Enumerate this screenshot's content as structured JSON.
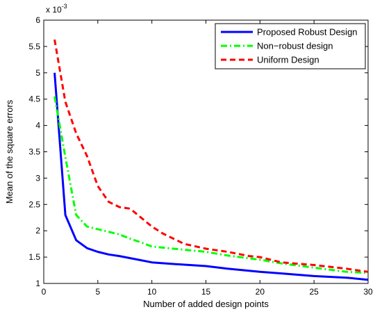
{
  "chart_data": {
    "type": "line",
    "xlabel": "Number of added design points",
    "ylabel": "Mean of the square errors",
    "y_multiplier_label": {
      "base": "x 10",
      "exponent": "-3"
    },
    "xlim": [
      0,
      30
    ],
    "ylim": [
      1,
      6
    ],
    "x_ticks": [
      0,
      5,
      10,
      15,
      20,
      25,
      30
    ],
    "x_tick_labels": [
      "0",
      "5",
      "10",
      "15",
      "20",
      "25",
      "30"
    ],
    "y_ticks": [
      1,
      1.5,
      2,
      2.5,
      3,
      3.5,
      4,
      4.5,
      5,
      5.5,
      6
    ],
    "y_tick_labels": [
      "1",
      "1.5",
      "2",
      "2.5",
      "3",
      "3.5",
      "4",
      "4.5",
      "5",
      "5.5",
      "6"
    ],
    "grid": false,
    "legend_position": "top-right",
    "series": [
      {
        "name": "Proposed Robust Design",
        "color": "#0000ff",
        "style": "solid",
        "x": [
          1,
          2,
          3,
          4,
          5,
          6,
          7,
          8,
          9,
          10,
          12,
          15,
          17,
          20,
          22,
          25,
          28,
          30
        ],
        "y": [
          5.0,
          2.3,
          1.82,
          1.67,
          1.6,
          1.55,
          1.52,
          1.48,
          1.44,
          1.4,
          1.37,
          1.33,
          1.28,
          1.22,
          1.19,
          1.14,
          1.11,
          1.07
        ]
      },
      {
        "name": "Non−robust design",
        "color": "#00ff00",
        "style": "dashdot",
        "x": [
          1,
          2,
          3,
          4,
          5,
          6,
          7,
          8,
          9,
          10,
          12,
          15,
          17,
          20,
          22,
          25,
          28,
          30
        ],
        "y": [
          4.55,
          3.4,
          2.3,
          2.08,
          2.03,
          1.98,
          1.93,
          1.85,
          1.78,
          1.7,
          1.66,
          1.6,
          1.53,
          1.45,
          1.38,
          1.3,
          1.22,
          1.2
        ]
      },
      {
        "name": "Uniform Design",
        "color": "#ff0000",
        "style": "dashed",
        "x": [
          1,
          2,
          3,
          4,
          5,
          6,
          7,
          8,
          9,
          10,
          11,
          12,
          13,
          15,
          17,
          19,
          20,
          22,
          25,
          28,
          30
        ],
        "y": [
          5.63,
          4.45,
          3.85,
          3.42,
          2.85,
          2.55,
          2.45,
          2.42,
          2.25,
          2.08,
          1.95,
          1.85,
          1.75,
          1.66,
          1.6,
          1.52,
          1.5,
          1.4,
          1.35,
          1.28,
          1.22
        ]
      }
    ]
  }
}
